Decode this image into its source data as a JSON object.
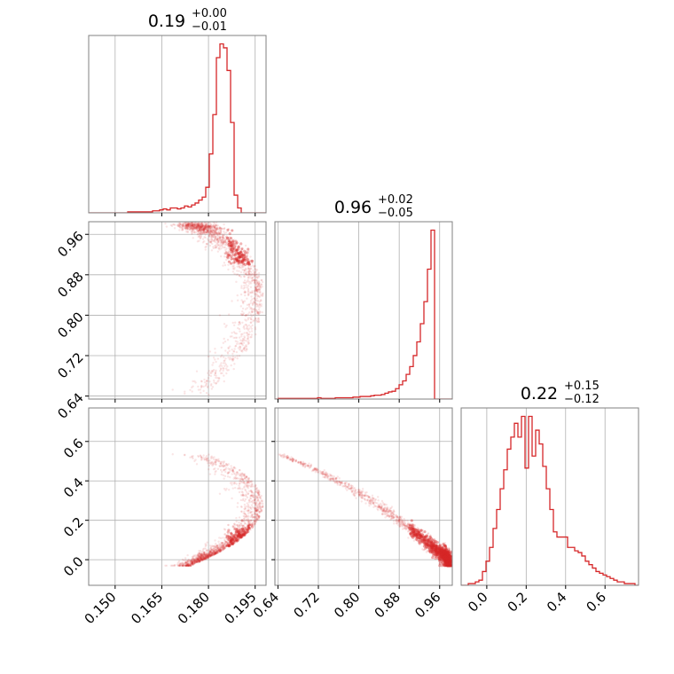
{
  "chart_data": {
    "type": "corner",
    "color": "#d62728",
    "grid": true,
    "parameters": [
      {
        "median": "0.19",
        "plus": "+0.00",
        "minus": "−0.01",
        "range": [
          0.1415,
          0.1985
        ],
        "ticks": [
          0.15,
          0.165,
          0.18,
          0.195
        ],
        "tick_labels": [
          "0.150",
          "0.165",
          "0.180",
          "0.195"
        ]
      },
      {
        "median": "0.96",
        "plus": "+0.02",
        "minus": "−0.05",
        "range": [
          0.634,
          0.985
        ],
        "ticks": [
          0.64,
          0.72,
          0.8,
          0.88,
          0.96
        ],
        "tick_labels": [
          "0.64",
          "0.72",
          "0.80",
          "0.88",
          "0.96"
        ]
      },
      {
        "median": "0.22",
        "plus": "+0.15",
        "minus": "−0.12",
        "range": [
          -0.13,
          0.77
        ],
        "ticks": [
          0.0,
          0.2,
          0.4,
          0.6
        ],
        "tick_labels": [
          "0.0",
          "0.2",
          "0.4",
          "0.6"
        ]
      }
    ],
    "histograms": [
      {
        "param": 0,
        "edges_start": 0.1415,
        "bin_width": 0.00114,
        "counts": [
          0,
          0,
          0,
          0,
          0,
          0,
          0,
          0,
          0,
          0,
          0,
          1,
          1,
          1,
          1,
          1,
          1,
          1,
          2,
          2,
          3,
          4,
          3,
          5,
          5,
          4,
          5,
          7,
          6,
          8,
          10,
          13,
          16,
          26,
          60,
          100,
          158,
          172,
          168,
          145,
          92,
          18,
          5,
          0,
          0,
          0,
          0,
          0,
          0,
          0
        ]
      },
      {
        "param": 1,
        "edges_start": 0.634,
        "bin_width": 0.00702,
        "counts": [
          0,
          1,
          1,
          1,
          1,
          1,
          1,
          1,
          1,
          1,
          1,
          1,
          2,
          1,
          1,
          1,
          1,
          2,
          2,
          2,
          2,
          2,
          3,
          3,
          4,
          4,
          4,
          5,
          6,
          6,
          7,
          9,
          11,
          12,
          16,
          22,
          28,
          38,
          50,
          67,
          88,
          116,
          150,
          200,
          260,
          0,
          0,
          0,
          0,
          0
        ]
      },
      {
        "param": 2,
        "edges_start": -0.13,
        "bin_width": 0.018,
        "counts": [
          0,
          0,
          1,
          1,
          2,
          3,
          8,
          14,
          22,
          33,
          44,
          56,
          67,
          79,
          86,
          94,
          86,
          98,
          68,
          98,
          75,
          90,
          82,
          69,
          56,
          44,
          31,
          28,
          28,
          28,
          22,
          22,
          20,
          19,
          17,
          14,
          12,
          10,
          8,
          7,
          6,
          5,
          4,
          3,
          2,
          2,
          1,
          1,
          1,
          0
        ]
      }
    ],
    "scatter_pairs": [
      {
        "x_param": 0,
        "y_param": 1
      },
      {
        "x_param": 0,
        "y_param": 2
      },
      {
        "x_param": 1,
        "y_param": 2
      }
    ],
    "density_model": {
      "base_a": [
        0.1944,
        0.1786
      ],
      "base_b_vs_a": [
        0.6656,
        0.2911
      ],
      "max_a": 0.1975,
      "spread_a": 0.0009,
      "spread_b": 0.004,
      "spread_c": 0.08
    }
  }
}
